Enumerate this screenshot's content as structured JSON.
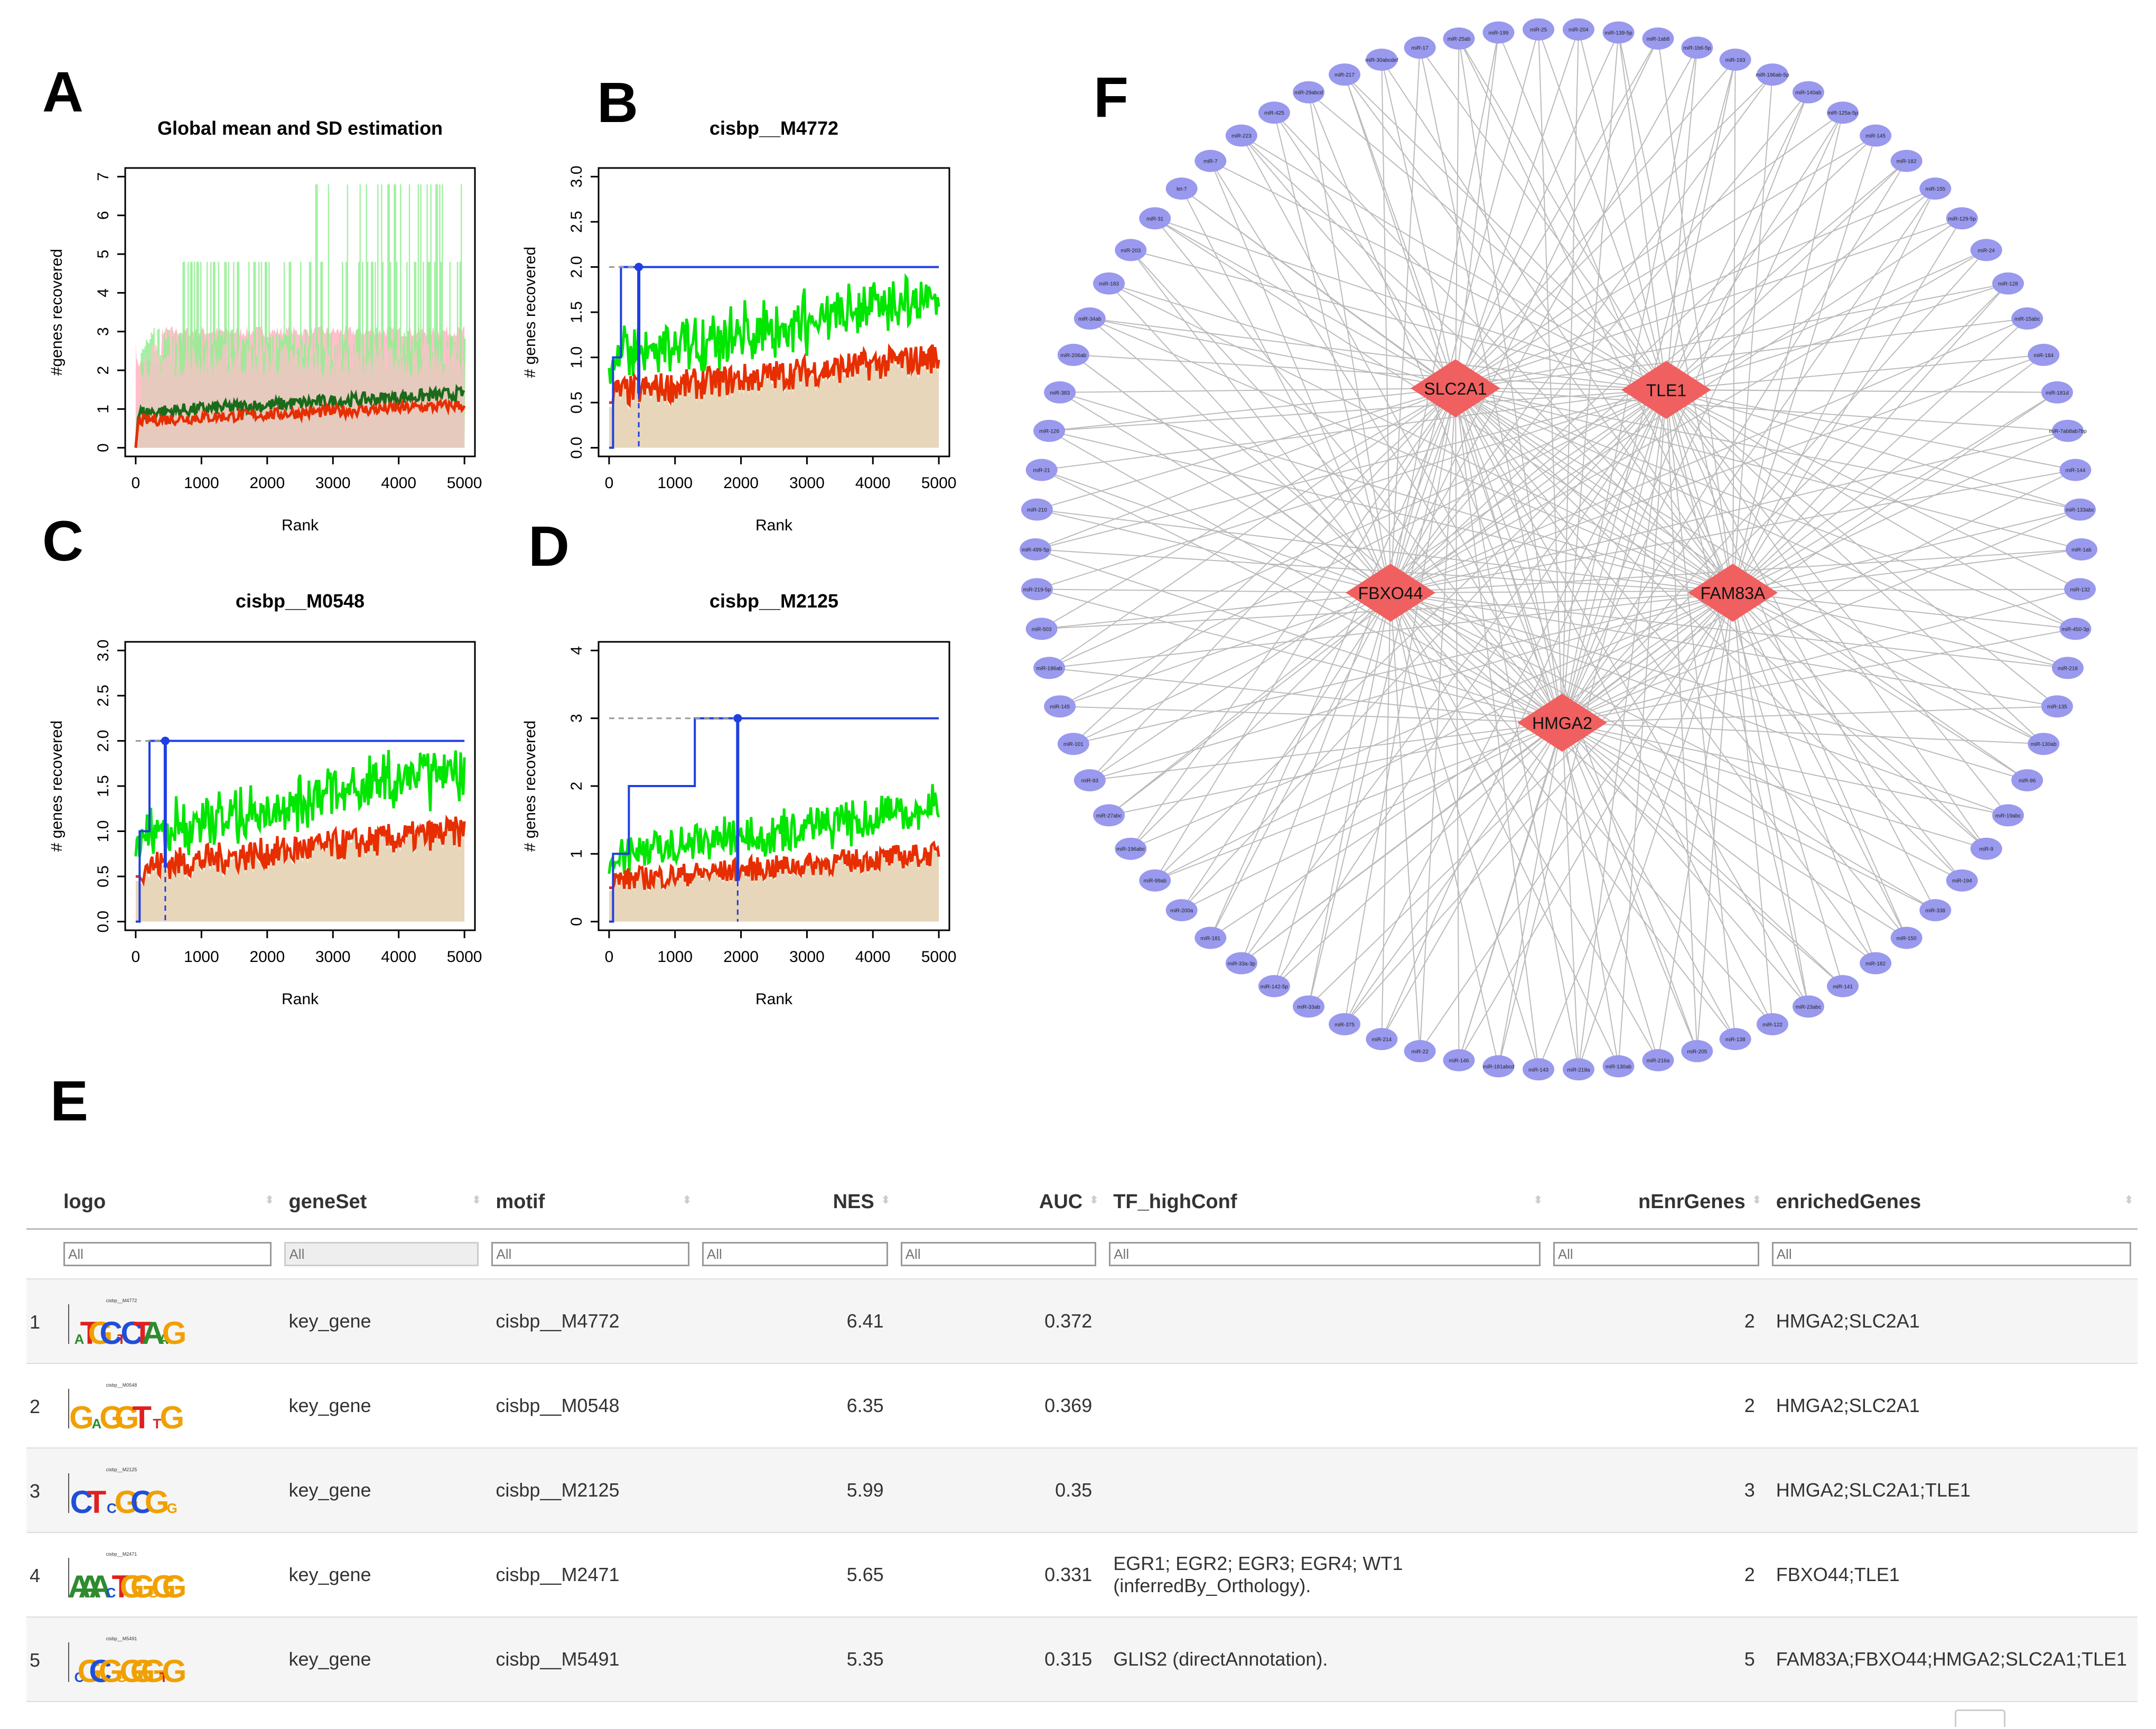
{
  "panels": {
    "A": "A",
    "B": "B",
    "C": "C",
    "D": "D",
    "E": "E",
    "F": "F"
  },
  "colors": {
    "blue_line": "#1f3fe0",
    "green": "#00e600",
    "dark_green": "#1a6b1a",
    "red": "#e62e00",
    "tan_fill": "#e8d6ba",
    "pink_fill": "#ffc0cb",
    "light_green": "#90ee90",
    "node_fill": "#9999ee",
    "diamond_fill": "#f06060",
    "edge": "#bbbbbb"
  },
  "chart_data": [
    {
      "type": "line",
      "panel": "A",
      "title": "Global mean and SD estimation",
      "xlabel": "Rank",
      "ylabel": "#genes recovered",
      "xlim": [
        0,
        5000
      ],
      "ylim": [
        0,
        7
      ],
      "xticks": [
        "0",
        "1000",
        "2000",
        "3000",
        "4000",
        "5000"
      ],
      "yticks": [
        "0",
        "1",
        "2",
        "3",
        "4",
        "5",
        "6",
        "7"
      ],
      "series": [
        {
          "values_summary": "mean ~1.0 rising to ~1.4; mean+SD band up to ~3; max spikes to 6.8"
        }
      ]
    },
    {
      "type": "line",
      "panel": "B",
      "title": "cisbp__M4772",
      "xlabel": "Rank",
      "ylabel": "# genes recovered",
      "xlim": [
        0,
        5000
      ],
      "ylim": [
        0,
        3.0
      ],
      "xticks": [
        "0",
        "1000",
        "2000",
        "3000",
        "4000",
        "5000"
      ],
      "yticks": [
        "0.0",
        "0.5",
        "1.0",
        "1.5",
        "2.0",
        "2.5",
        "3.0"
      ],
      "recovery_steps": [
        [
          0,
          0
        ],
        [
          60,
          1
        ],
        [
          180,
          2
        ]
      ],
      "max_genes": 2,
      "optimal_rank": 450
    },
    {
      "type": "line",
      "panel": "C",
      "title": "cisbp__M0548",
      "xlabel": "Rank",
      "ylabel": "# genes recovered",
      "xlim": [
        0,
        5000
      ],
      "ylim": [
        0,
        3.0
      ],
      "xticks": [
        "0",
        "1000",
        "2000",
        "3000",
        "4000",
        "5000"
      ],
      "yticks": [
        "0.0",
        "0.5",
        "1.0",
        "1.5",
        "2.0",
        "2.5",
        "3.0"
      ],
      "recovery_steps": [
        [
          0,
          0
        ],
        [
          60,
          1
        ],
        [
          210,
          2
        ]
      ],
      "max_genes": 2,
      "optimal_rank": 450
    },
    {
      "type": "line",
      "panel": "D",
      "title": "cisbp__M2125",
      "xlabel": "Rank",
      "ylabel": "# genes recovered",
      "xlim": [
        0,
        5000
      ],
      "ylim": [
        0,
        4
      ],
      "xticks": [
        "0",
        "1000",
        "2000",
        "3000",
        "4000",
        "5000"
      ],
      "yticks": [
        "0",
        "1",
        "2",
        "3",
        "4"
      ],
      "recovery_steps": [
        [
          0,
          0
        ],
        [
          60,
          1
        ],
        [
          300,
          2
        ],
        [
          1300,
          3
        ]
      ],
      "max_genes": 3,
      "optimal_rank": 1950
    }
  ],
  "network": {
    "hubs": [
      "SLC2A1",
      "TLE1",
      "FBXO44",
      "FAM83A",
      "HMGA2"
    ],
    "mirnas": [
      "miR-204",
      "miR-139-5p",
      "miR-1ab8",
      "miR-1b6-5p",
      "miR-193",
      "miR-196ab-5p",
      "miR-140ab",
      "miR-125a-5p",
      "miR-145",
      "miR-182",
      "miR-155",
      "miR-129-5p",
      "miR-24",
      "miR-128",
      "miR-15abc",
      "miR-184",
      "miR-181d",
      "miR-7ab8ab7bp",
      "miR-144",
      "miR-133abc",
      "miR-1ab",
      "miR-132",
      "miR-450-3p",
      "miR-218",
      "miR-135",
      "miR-130ab",
      "miR-96",
      "miR-19abc",
      "miR-9",
      "miR-194",
      "miR-338",
      "miR-150",
      "miR-182",
      "miR-141",
      "miR-23abc",
      "miR-122",
      "miR-138",
      "miR-205",
      "miR-216a",
      "miR-130ab",
      "miR-218a",
      "miR-143",
      "miR-181abcd",
      "miR-146",
      "miR-22",
      "miR-214",
      "miR-375",
      "miR-33ab",
      "miR-142-5p",
      "miR-33a-3p",
      "miR-181",
      "miR-200a",
      "miR-99ab",
      "miR-196abc",
      "miR-27abc",
      "miR-93",
      "miR-101",
      "miR-145",
      "miR-186ab",
      "miR-503",
      "miR-219-5p",
      "miR-499-5p",
      "miR-210",
      "miR-21",
      "miR-126",
      "miR-383",
      "miR-206ab",
      "miR-34ab",
      "miR-183",
      "miR-203",
      "miR-31",
      "let-7",
      "miR-7",
      "miR-223",
      "miR-425",
      "miR-29abcd",
      "miR-217",
      "miR-30abcdef",
      "miR-17",
      "miR-25ab",
      "miR-199",
      "miR-25"
    ]
  },
  "table": {
    "headers": {
      "logo": "logo",
      "geneSet": "geneSet",
      "motif": "motif",
      "NES": "NES",
      "AUC": "AUC",
      "TF_highConf": "TF_highConf",
      "nEnrGenes": "nEnrGenes",
      "enrichedGenes": "enrichedGenes"
    },
    "filter_placeholder": "All",
    "rows": [
      {
        "idx": "1",
        "geneSet": "key_gene",
        "motif": "cisbp__M4772",
        "NES": "6.41",
        "AUC": "0.372",
        "TF": "",
        "TF2": "",
        "n": "2",
        "genes": "HMGA2;SLC2A1",
        "logo_title": "cisbp__M4772"
      },
      {
        "idx": "2",
        "geneSet": "key_gene",
        "motif": "cisbp__M0548",
        "NES": "6.35",
        "AUC": "0.369",
        "TF": "",
        "TF2": "",
        "n": "2",
        "genes": "HMGA2;SLC2A1",
        "logo_title": "cisbp__M0548"
      },
      {
        "idx": "3",
        "geneSet": "key_gene",
        "motif": "cisbp__M2125",
        "NES": "5.99",
        "AUC": "0.35",
        "TF": "",
        "TF2": "",
        "n": "3",
        "genes": "HMGA2;SLC2A1;TLE1",
        "logo_title": "cisbp__M2125"
      },
      {
        "idx": "4",
        "geneSet": "key_gene",
        "motif": "cisbp__M2471",
        "NES": "5.65",
        "AUC": "0.331",
        "TF": "EGR1; EGR2; EGR3; EGR4; WT1",
        "TF2": "(inferredBy_Orthology).",
        "n": "2",
        "genes": "FBXO44;TLE1",
        "logo_title": "cisbp__M2471"
      },
      {
        "idx": "5",
        "geneSet": "key_gene",
        "motif": "cisbp__M5491",
        "NES": "5.35",
        "AUC": "0.315",
        "TF": "GLIS2 (directAnnotation).",
        "TF2": "",
        "n": "5",
        "genes": "FAM83A;FBXO44;HMGA2;SLC2A1;TLE1",
        "logo_title": "cisbp__M5491"
      }
    ]
  }
}
